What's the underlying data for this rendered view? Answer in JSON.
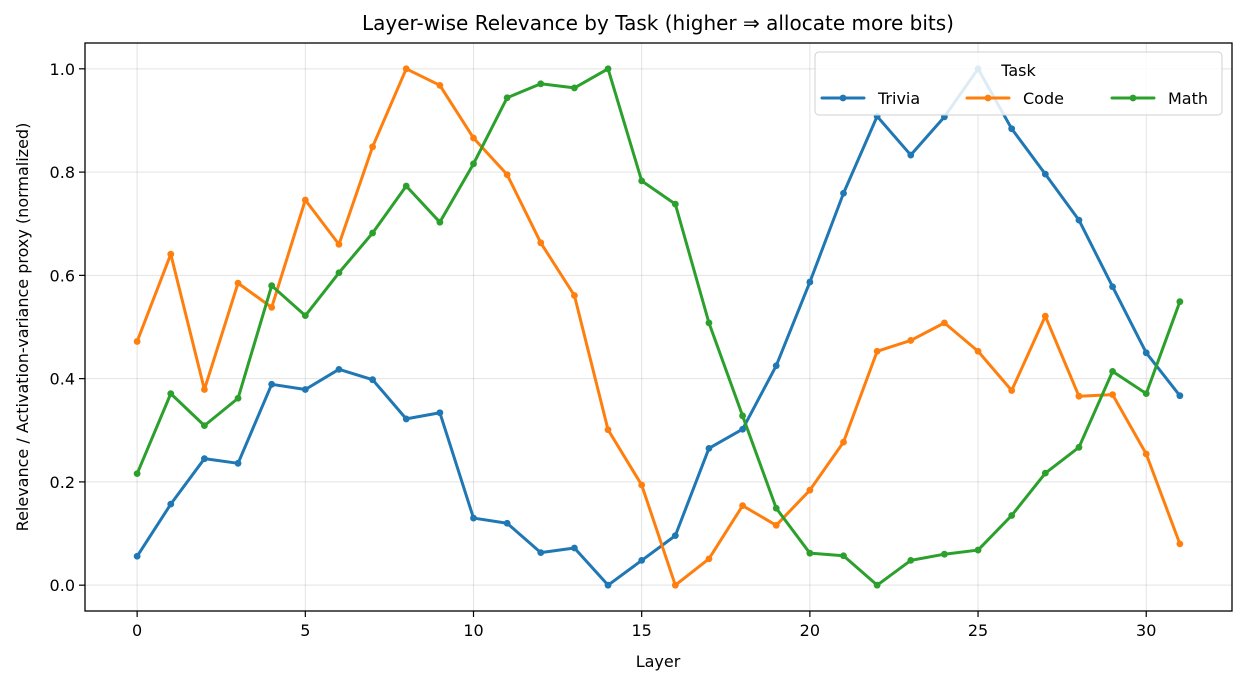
{
  "chart_data": {
    "type": "line",
    "title": "Layer-wise Relevance by Task (higher ⇒ allocate more bits)",
    "xlabel": "Layer",
    "ylabel": "Relevance / Activation-variance proxy (normalized)",
    "xlim": [
      -1.55,
      32.55
    ],
    "ylim": [
      -0.05,
      1.05
    ],
    "xticks": [
      0,
      5,
      10,
      15,
      20,
      25,
      30
    ],
    "yticks": [
      0.0,
      0.2,
      0.4,
      0.6,
      0.8,
      1.0
    ],
    "xtick_labels": [
      "0",
      "5",
      "10",
      "15",
      "20",
      "25",
      "30"
    ],
    "ytick_labels": [
      "0.0",
      "0.2",
      "0.4",
      "0.6",
      "0.8",
      "1.0"
    ],
    "grid": true,
    "legend": {
      "title": "Task",
      "placement": "upper right",
      "columns": 3
    },
    "x": [
      0,
      1,
      2,
      3,
      4,
      5,
      6,
      7,
      8,
      9,
      10,
      11,
      12,
      13,
      14,
      15,
      16,
      17,
      18,
      19,
      20,
      21,
      22,
      23,
      24,
      25,
      26,
      27,
      28,
      29,
      30,
      31
    ],
    "series": [
      {
        "name": "Trivia",
        "color": "#1f77b4",
        "values": [
          0.056,
          0.157,
          0.245,
          0.236,
          0.389,
          0.379,
          0.418,
          0.398,
          0.322,
          0.334,
          0.13,
          0.12,
          0.063,
          0.072,
          0.0,
          0.048,
          0.096,
          0.265,
          0.302,
          0.425,
          0.587,
          0.759,
          0.908,
          0.833,
          0.907,
          1.0,
          0.884,
          0.796,
          0.707,
          0.578,
          0.45,
          0.367
        ]
      },
      {
        "name": "Code",
        "color": "#ff7f0e",
        "values": [
          0.472,
          0.641,
          0.379,
          0.585,
          0.538,
          0.746,
          0.66,
          0.849,
          1.0,
          0.968,
          0.866,
          0.795,
          0.663,
          0.561,
          0.301,
          0.194,
          0.0,
          0.051,
          0.154,
          0.116,
          0.184,
          0.277,
          0.453,
          0.474,
          0.508,
          0.453,
          0.377,
          0.521,
          0.366,
          0.369,
          0.254,
          0.08
        ]
      },
      {
        "name": "Math",
        "color": "#2ca02c",
        "values": [
          0.216,
          0.371,
          0.309,
          0.362,
          0.58,
          0.522,
          0.605,
          0.682,
          0.773,
          0.703,
          0.816,
          0.944,
          0.971,
          0.963,
          1.0,
          0.783,
          0.738,
          0.508,
          0.328,
          0.149,
          0.062,
          0.057,
          0.0,
          0.048,
          0.06,
          0.068,
          0.135,
          0.217,
          0.267,
          0.414,
          0.371,
          0.549
        ]
      }
    ]
  }
}
